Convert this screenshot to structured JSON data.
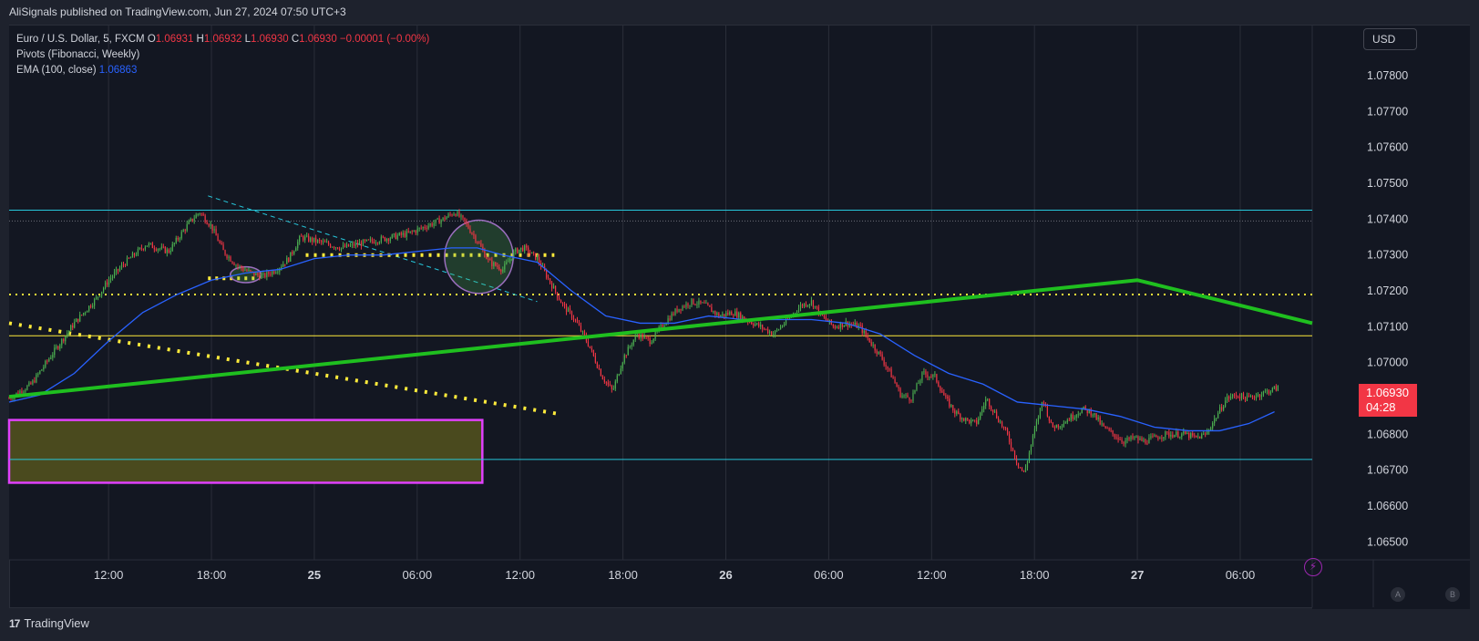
{
  "header": {
    "published_text": "AliSignals published on TradingView.com, Jun 27, 2024 07:50 UTC+3"
  },
  "legend": {
    "symbol": "Euro / U.S. Dollar, 5, FXCM",
    "o_label": "O",
    "o_value": "1.06931",
    "h_label": "H",
    "h_value": "1.06932",
    "l_label": "L",
    "l_value": "1.06930",
    "c_label": "C",
    "c_value": "1.06930",
    "change": "−0.00001 (−0.00%)",
    "pivots": "Pivots (Fibonacci, Weekly)",
    "ema_label": "EMA (100, close)",
    "ema_value": "1.06863"
  },
  "price_scale": {
    "currency": "USD",
    "last_price": "1.06930",
    "countdown": "04:28"
  },
  "footer": {
    "brand": "TradingView",
    "logo_text": "17"
  },
  "corner_buttons": {
    "a": "A",
    "b": "B"
  },
  "colors": {
    "background": "#131722",
    "grid": "#2a2e39",
    "up": "#26a69a",
    "candle_up": "#4caf50",
    "candle_down": "#f23645",
    "ema": "#2962ff",
    "trend_green": "#1fbf1f",
    "yellow_dots": "#ffeb3b",
    "cyan": "#26c6da",
    "zone_border": "#e040fb",
    "zone_fill": "#4a4a1e"
  },
  "chart_data": {
    "type": "candlestick",
    "y_ticks": [
      "1.07800",
      "1.07700",
      "1.07600",
      "1.07500",
      "1.07400",
      "1.07300",
      "1.07200",
      "1.07100",
      "1.07000",
      "1.06900",
      "1.06800",
      "1.06700",
      "1.06600",
      "1.06500"
    ],
    "ylim": [
      1.0645,
      1.0794
    ],
    "x_ticks": [
      {
        "label": "12:00",
        "t": 7
      },
      {
        "label": "18:00",
        "t": 13
      },
      {
        "label": "25",
        "t": 19
      },
      {
        "label": "06:00",
        "t": 25
      },
      {
        "label": "12:00",
        "t": 31
      },
      {
        "label": "18:00",
        "t": 37
      },
      {
        "label": "26",
        "t": 43
      },
      {
        "label": "06:00",
        "t": 49
      },
      {
        "label": "12:00",
        "t": 55
      },
      {
        "label": "18:00",
        "t": 61
      },
      {
        "label": "27",
        "t": 67
      },
      {
        "label": "06:00",
        "t": 73
      }
    ],
    "xlim": [
      1.2,
      77.2
    ],
    "price_path": [
      [
        1.2,
        1.069
      ],
      [
        2.5,
        1.0694
      ],
      [
        3.8,
        1.0703
      ],
      [
        5.0,
        1.0711
      ],
      [
        6.3,
        1.0718
      ],
      [
        7.0,
        1.0723
      ],
      [
        8.0,
        1.0728
      ],
      [
        9.2,
        1.0733
      ],
      [
        10.5,
        1.0731
      ],
      [
        11.7,
        1.0739
      ],
      [
        12.3,
        1.0742
      ],
      [
        13.0,
        1.0738
      ],
      [
        13.7,
        1.0731
      ],
      [
        14.5,
        1.0727
      ],
      [
        15.3,
        1.0725
      ],
      [
        16.0,
        1.0724
      ],
      [
        16.8,
        1.0726
      ],
      [
        17.5,
        1.0729
      ],
      [
        18.2,
        1.0735
      ],
      [
        19.0,
        1.0734
      ],
      [
        19.8,
        1.0733
      ],
      [
        20.6,
        1.0732
      ],
      [
        21.5,
        1.0733
      ],
      [
        22.5,
        1.0734
      ],
      [
        23.5,
        1.0735
      ],
      [
        24.5,
        1.0736
      ],
      [
        25.5,
        1.0738
      ],
      [
        26.5,
        1.074
      ],
      [
        27.2,
        1.0742
      ],
      [
        27.8,
        1.0739
      ],
      [
        28.5,
        1.0734
      ],
      [
        29.2,
        1.0728
      ],
      [
        30.0,
        1.0726
      ],
      [
        30.7,
        1.0731
      ],
      [
        31.2,
        1.0732
      ],
      [
        32.0,
        1.0729
      ],
      [
        32.8,
        1.0722
      ],
      [
        33.5,
        1.0716
      ],
      [
        34.2,
        1.0712
      ],
      [
        35.0,
        1.0705
      ],
      [
        35.8,
        1.0696
      ],
      [
        36.4,
        1.0692
      ],
      [
        37.0,
        1.0701
      ],
      [
        37.8,
        1.0708
      ],
      [
        38.6,
        1.0706
      ],
      [
        39.4,
        1.0711
      ],
      [
        40.2,
        1.0715
      ],
      [
        41.0,
        1.0717
      ],
      [
        41.8,
        1.0716
      ],
      [
        42.6,
        1.0713
      ],
      [
        43.4,
        1.0714
      ],
      [
        44.2,
        1.0712
      ],
      [
        45.0,
        1.071
      ],
      [
        45.8,
        1.0708
      ],
      [
        46.6,
        1.0712
      ],
      [
        47.4,
        1.0716
      ],
      [
        48.0,
        1.0717
      ],
      [
        48.6,
        1.0713
      ],
      [
        49.3,
        1.071
      ],
      [
        50.0,
        1.0711
      ],
      [
        50.8,
        1.071
      ],
      [
        51.4,
        1.0706
      ],
      [
        52.0,
        1.0702
      ],
      [
        52.6,
        1.0697
      ],
      [
        53.2,
        1.0691
      ],
      [
        53.8,
        1.069
      ],
      [
        54.5,
        1.0697
      ],
      [
        55.2,
        1.0696
      ],
      [
        55.8,
        1.069
      ],
      [
        56.4,
        1.0686
      ],
      [
        57.0,
        1.0684
      ],
      [
        57.6,
        1.0683
      ],
      [
        58.2,
        1.069
      ],
      [
        58.8,
        1.0685
      ],
      [
        59.4,
        1.068
      ],
      [
        60.0,
        1.0672
      ],
      [
        60.4,
        1.0669
      ],
      [
        60.9,
        1.0679
      ],
      [
        61.5,
        1.069
      ],
      [
        62.0,
        1.0682
      ],
      [
        62.6,
        1.0683
      ],
      [
        63.2,
        1.0685
      ],
      [
        63.8,
        1.0687
      ],
      [
        64.4,
        1.0686
      ],
      [
        65.0,
        1.0682
      ],
      [
        65.6,
        1.068
      ],
      [
        66.2,
        1.0678
      ],
      [
        66.8,
        1.0679
      ],
      [
        67.4,
        1.0678
      ],
      [
        68.0,
        1.0679
      ],
      [
        68.6,
        1.068
      ],
      [
        69.2,
        1.068
      ],
      [
        69.8,
        1.068
      ],
      [
        70.4,
        1.0679
      ],
      [
        71.0,
        1.068
      ],
      [
        71.6,
        1.0685
      ],
      [
        72.2,
        1.069
      ],
      [
        72.8,
        1.0691
      ],
      [
        73.4,
        1.069
      ],
      [
        74.0,
        1.0691
      ],
      [
        74.6,
        1.0692
      ],
      [
        75.2,
        1.0693
      ]
    ],
    "ema_path": [
      [
        1.2,
        1.0689
      ],
      [
        3.0,
        1.0691
      ],
      [
        5.0,
        1.0697
      ],
      [
        7.0,
        1.0706
      ],
      [
        9.0,
        1.0714
      ],
      [
        11.0,
        1.0719
      ],
      [
        13.0,
        1.0723
      ],
      [
        15.0,
        1.0725
      ],
      [
        17.0,
        1.0726
      ],
      [
        19.0,
        1.0729
      ],
      [
        21.0,
        1.073
      ],
      [
        23.0,
        1.073
      ],
      [
        25.0,
        1.0731
      ],
      [
        27.0,
        1.0732
      ],
      [
        28.5,
        1.0732
      ],
      [
        30.0,
        1.073
      ],
      [
        32.0,
        1.0728
      ],
      [
        34.0,
        1.072
      ],
      [
        36.0,
        1.0713
      ],
      [
        38.0,
        1.0711
      ],
      [
        40.0,
        1.0711
      ],
      [
        42.0,
        1.0713
      ],
      [
        44.0,
        1.0712
      ],
      [
        46.0,
        1.0712
      ],
      [
        48.0,
        1.0712
      ],
      [
        50.0,
        1.0711
      ],
      [
        52.0,
        1.0708
      ],
      [
        54.0,
        1.0702
      ],
      [
        56.0,
        1.0697
      ],
      [
        58.0,
        1.0694
      ],
      [
        60.0,
        1.0689
      ],
      [
        62.0,
        1.0688
      ],
      [
        64.0,
        1.0687
      ],
      [
        66.0,
        1.0685
      ],
      [
        68.0,
        1.0682
      ],
      [
        70.0,
        1.0681
      ],
      [
        71.8,
        1.0681
      ],
      [
        73.5,
        1.0683
      ],
      [
        75.0,
        1.06863
      ]
    ],
    "hlines": [
      {
        "y": 1.07425,
        "style": "cyan"
      },
      {
        "y": 1.07395,
        "style": "dotted-gray"
      },
      {
        "y": 1.0719,
        "style": "yellow-dotted"
      },
      {
        "y": 1.07075,
        "style": "yellow"
      },
      {
        "y": 1.0673,
        "style": "cyan"
      }
    ],
    "trend_green": [
      [
        1.2,
        1.06905
      ],
      [
        67.0,
        1.0723
      ],
      [
        77.2,
        1.0711
      ]
    ],
    "dotted_yellow_diag": [
      [
        1.2,
        1.0711
      ],
      [
        33.5,
        1.06855
      ]
    ],
    "dotted_yellow_short": [
      [
        18.5,
        1.073
      ],
      [
        33.0,
        1.073
      ]
    ],
    "dotted_yellow_small": [
      [
        12.8,
        1.07235
      ],
      [
        15.8,
        1.07235
      ]
    ],
    "cyan_dashed_diag": [
      [
        12.8,
        1.07465
      ],
      [
        32.0,
        1.0717
      ]
    ],
    "zone": {
      "x0": 1.2,
      "x1": 28.8,
      "y0": 1.0684,
      "y1": 1.06665
    },
    "ellipses": [
      {
        "cx": 15.0,
        "cy": 1.07245,
        "rx": 0.9,
        "ry": 0.00022
      },
      {
        "cx": 28.6,
        "cy": 1.07295,
        "rx": 2.0,
        "ry": 0.00102
      }
    ]
  }
}
